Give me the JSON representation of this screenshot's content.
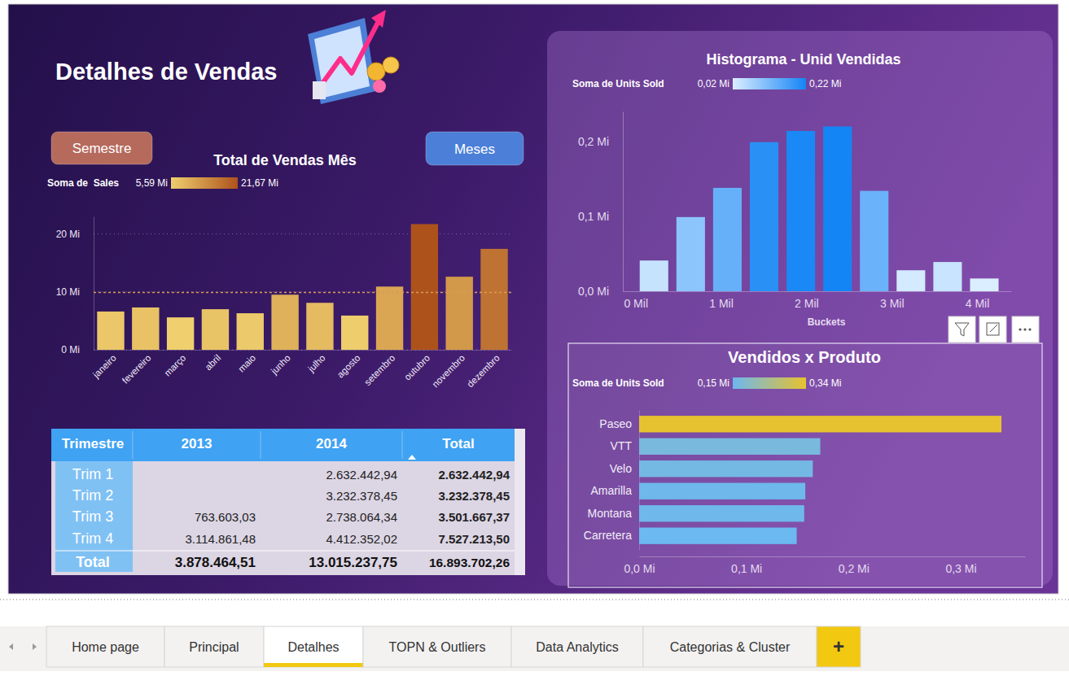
{
  "page": {
    "title": "Detalhes de Vendas",
    "buttons": [
      "Semestre",
      "Meses"
    ],
    "tabs": [
      "Home page",
      "Principal",
      "Detalhes",
      "TOPN & Outliers",
      "Data Analytics",
      "Categorias & Cluster",
      "+"
    ],
    "active_tab": 2
  },
  "chart_data": [
    {
      "type": "bar",
      "title": "Total de Vendas Mês",
      "categories": [
        "janeiro",
        "fevereiro",
        "março",
        "abril",
        "maio",
        "junho",
        "julho",
        "agosto",
        "setembro",
        "outubro",
        "novembro",
        "dezembro"
      ],
      "values": [
        6.6,
        7.3,
        5.59,
        7.0,
        6.3,
        9.5,
        8.1,
        5.9,
        10.9,
        21.67,
        12.6,
        17.4
      ],
      "average": 9.9,
      "ylim": [
        0,
        23
      ],
      "yticks": [
        {
          "value": 0,
          "label": "0 Mi"
        },
        {
          "value": 10,
          "label": "10 Mi"
        },
        {
          "value": 20,
          "label": "20 Mi"
        }
      ],
      "grid": true,
      "color_scale": {
        "title": "Soma de  Sales",
        "range": [
          5.59,
          21.67
        ],
        "labels": [
          "5,59 Mi",
          "21,67 Mi"
        ],
        "colors": [
          "#efcf6e",
          "#ae521c"
        ]
      }
    },
    {
      "type": "histogram",
      "title": "Histograma - Unid Vendidas",
      "x_label": "Buckets",
      "bins": [
        0,
        430,
        860,
        1290,
        1720,
        2150,
        2580,
        3010,
        3440,
        3870,
        4300
      ],
      "values": [
        0.041,
        0.099,
        0.138,
        0.199,
        0.214,
        0.22,
        0.134,
        0.028,
        0.039,
        0.017
      ],
      "xlim": [
        -150,
        4400
      ],
      "xticks": [
        {
          "value": 0,
          "label": "0 Mil"
        },
        {
          "value": 1000,
          "label": "1 Mil"
        },
        {
          "value": 2000,
          "label": "2 Mil"
        },
        {
          "value": 3000,
          "label": "3 Mil"
        },
        {
          "value": 4000,
          "label": "4 Mil"
        }
      ],
      "ylim": [
        0,
        0.24
      ],
      "yticks": [
        {
          "value": 0,
          "label": "0,0 Mi"
        },
        {
          "value": 0.1,
          "label": "0,1 Mi"
        },
        {
          "value": 0.2,
          "label": "0,2 Mi"
        }
      ],
      "grid": false,
      "color_scale": {
        "title": "Soma de Units Sold",
        "range": [
          0.02,
          0.22
        ],
        "labels": [
          "0,02 Mi",
          "0,22 Mi"
        ],
        "colors": [
          "#dbeeff",
          "#1485f5"
        ]
      }
    },
    {
      "type": "bar",
      "orientation": "horizontal",
      "title": "Vendidos x Produto",
      "categories": [
        "Paseo",
        "VTT",
        "Velo",
        "Amarilla",
        "Montana",
        "Carretera"
      ],
      "values": [
        0.338,
        0.169,
        0.162,
        0.155,
        0.154,
        0.147
      ],
      "xlim": [
        0,
        0.36
      ],
      "xticks": [
        {
          "value": 0,
          "label": "0,0 Mi"
        },
        {
          "value": 0.1,
          "label": "0,1 Mi"
        },
        {
          "value": 0.2,
          "label": "0,2 Mi"
        },
        {
          "value": 0.3,
          "label": "0,3 Mi"
        }
      ],
      "grid": false,
      "color_scale": {
        "title": "Soma de Units Sold",
        "range": [
          0.15,
          0.34
        ],
        "labels": [
          "0,15 Mi",
          "0,34 Mi"
        ],
        "colors": [
          "#6cb8f0",
          "#e8c22e"
        ]
      }
    }
  ],
  "table": {
    "columns": [
      "Trimestre",
      "2013",
      "2014",
      "Total"
    ],
    "rows": [
      [
        "Trim 1",
        null,
        "2.632.442,94",
        "2.632.442,94"
      ],
      [
        "Trim 2",
        null,
        "3.232.378,45",
        "3.232.378,45"
      ],
      [
        "Trim 3",
        "763.603,03",
        "2.738.064,34",
        "3.501.667,37"
      ],
      [
        "Trim 4",
        "3.114.861,48",
        "4.412.352,02",
        "7.527.213,50"
      ]
    ],
    "total": [
      "Total",
      "3.878.464,51",
      "13.015.237,75",
      "16.893.702,26"
    ]
  }
}
